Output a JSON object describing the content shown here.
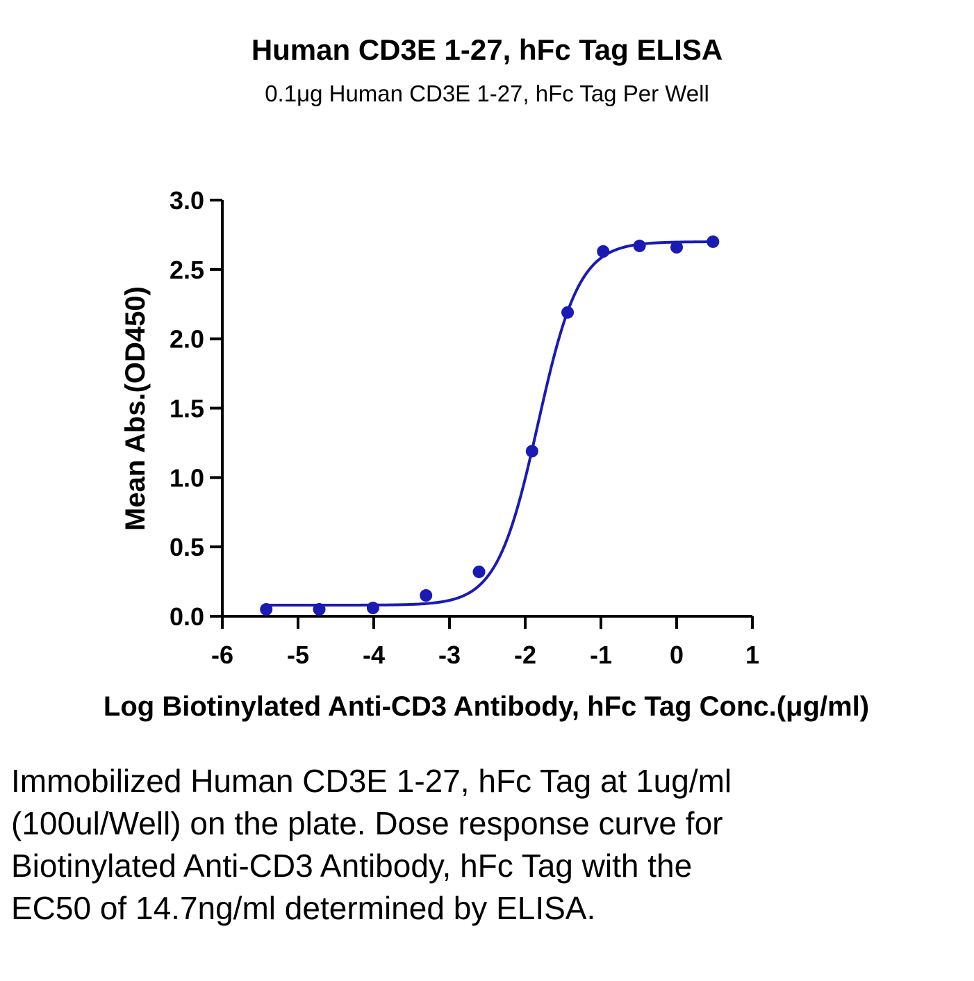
{
  "chart_data": {
    "type": "scatter",
    "title": "Human CD3E 1-27, hFc Tag ELISA",
    "subtitle": "0.1μg Human CD3E 1-27, hFc Tag Per Well",
    "xlabel": "Log Biotinylated Anti-CD3 Antibody, hFc Tag Conc.(μg/ml)",
    "ylabel": "Mean Abs.(OD450)",
    "xlim": [
      -6,
      1
    ],
    "ylim": [
      0,
      3.0
    ],
    "xticks": [
      "-6",
      "-5",
      "-4",
      "-3",
      "-2",
      "-1",
      "0",
      "1"
    ],
    "yticks": [
      "0.0",
      "0.5",
      "1.0",
      "1.5",
      "2.0",
      "2.5",
      "3.0"
    ],
    "grid": false,
    "color": "#1a1ab4",
    "series": [
      {
        "x": [
          -5.42,
          -4.72,
          -4.01,
          -3.31,
          -2.61,
          -1.91,
          -1.44,
          -0.97,
          -0.49,
          0.0,
          0.48
        ],
        "y": [
          0.05,
          0.05,
          0.06,
          0.15,
          0.32,
          1.19,
          2.19,
          2.63,
          2.67,
          2.66,
          2.7
        ]
      }
    ],
    "fit": {
      "model": "4PL",
      "bottom": 0.08,
      "top": 2.7,
      "log_ec50": -1.83,
      "hill": 1.6,
      "x_range": [
        -5.42,
        0.48
      ]
    }
  },
  "caption": "Immobilized Human CD3E 1-27, hFc Tag at 1ug/ml (100ul/Well) on the plate. Dose response curve for Biotinylated Anti-CD3 Antibody, hFc Tag with the EC50 of 14.7ng/ml determined by ELISA."
}
